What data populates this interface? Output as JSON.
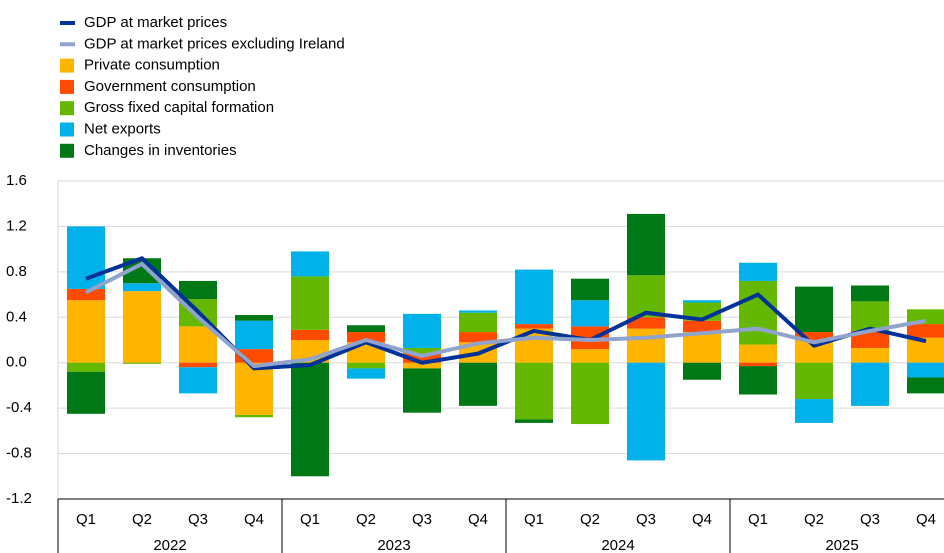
{
  "chart_data": {
    "type": "bar",
    "categories": [
      "Q1",
      "Q2",
      "Q3",
      "Q4",
      "Q1",
      "Q2",
      "Q3",
      "Q4",
      "Q1",
      "Q2",
      "Q3",
      "Q4",
      "Q1",
      "Q2",
      "Q3",
      "Q4"
    ],
    "groups": [
      "2022",
      "2023",
      "2024",
      "2025"
    ],
    "ylim": [
      -1.2,
      1.6
    ],
    "yticks": [
      -1.2,
      -0.8,
      -0.4,
      {
        "value": 0,
        "label": "0.0"
      },
      0.4,
      0.8,
      1.2,
      1.6
    ],
    "grid": true,
    "legend": "top-left",
    "series": [
      {
        "name": "GDP at market prices",
        "type": "line",
        "color": "#003299",
        "values": [
          0.74,
          0.92,
          0.45,
          -0.05,
          -0.02,
          0.18,
          0.0,
          0.08,
          0.28,
          0.2,
          0.44,
          0.38,
          0.6,
          0.15,
          0.3,
          0.19
        ]
      },
      {
        "name": "GDP at market prices excluding Ireland",
        "type": "line",
        "color": "#8fa3cc",
        "values": [
          0.62,
          0.87,
          0.4,
          -0.03,
          0.03,
          0.2,
          0.06,
          0.17,
          0.22,
          0.2,
          0.22,
          0.26,
          0.3,
          0.18,
          0.28,
          0.37
        ]
      },
      {
        "name": "Private consumption",
        "type": "bar",
        "color": "#ffb400",
        "values": [
          0.55,
          0.63,
          0.32,
          -0.46,
          0.2,
          0.18,
          -0.05,
          0.18,
          0.3,
          0.12,
          0.3,
          0.27,
          0.16,
          0.2,
          0.13,
          0.22
        ]
      },
      {
        "name": "Government consumption",
        "type": "bar",
        "color": "#ff4b00",
        "values": [
          0.1,
          0.0,
          -0.04,
          0.12,
          0.09,
          0.09,
          0.08,
          0.09,
          0.04,
          0.2,
          0.1,
          0.1,
          -0.03,
          0.07,
          0.15,
          0.12
        ]
      },
      {
        "name": "Gross fixed capital formation",
        "type": "bar",
        "color": "#65b800",
        "values": [
          -0.08,
          -0.01,
          0.24,
          -0.02,
          0.47,
          -0.05,
          0.05,
          0.17,
          -0.5,
          -0.54,
          0.37,
          0.16,
          0.56,
          -0.32,
          0.26,
          0.13
        ]
      },
      {
        "name": "Net exports",
        "type": "bar",
        "color": "#00b1ea",
        "values": [
          0.55,
          0.07,
          -0.23,
          0.25,
          0.22,
          -0.09,
          0.3,
          0.02,
          0.48,
          0.23,
          -0.86,
          0.02,
          0.16,
          -0.21,
          -0.38,
          -0.13
        ]
      },
      {
        "name": "Changes in inventories",
        "type": "bar",
        "color": "#007816",
        "values": [
          -0.37,
          0.22,
          0.16,
          0.05,
          -1.0,
          0.06,
          -0.39,
          -0.38,
          -0.03,
          0.19,
          0.54,
          -0.15,
          -0.25,
          0.4,
          0.14,
          -0.14
        ]
      }
    ]
  }
}
